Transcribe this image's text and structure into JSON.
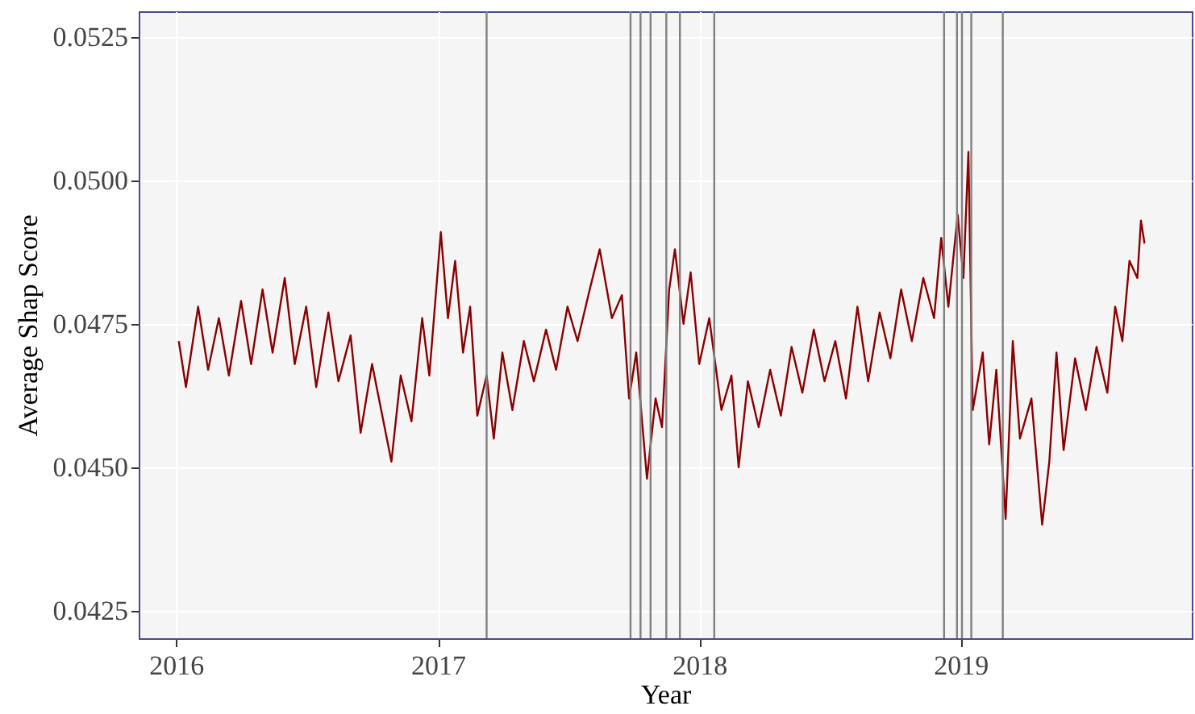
{
  "chart_data": {
    "type": "line",
    "xlabel": "Year",
    "ylabel": "Average Shap Score",
    "x": [
      "2016-01-05",
      "2016-01-15",
      "2016-02-01",
      "2016-02-15",
      "2016-03-01",
      "2016-03-15",
      "2016-04-01",
      "2016-04-15",
      "2016-05-01",
      "2016-05-15",
      "2016-06-01",
      "2016-06-15",
      "2016-07-01",
      "2016-07-15",
      "2016-08-01",
      "2016-08-15",
      "2016-09-01",
      "2016-09-15",
      "2016-10-01",
      "2016-10-28",
      "2016-11-10",
      "2016-11-25",
      "2016-12-10",
      "2016-12-20",
      "2017-01-05",
      "2017-01-15",
      "2017-01-25",
      "2017-02-05",
      "2017-02-15",
      "2017-02-25",
      "2017-03-10",
      "2017-03-20",
      "2017-04-01",
      "2017-04-15",
      "2017-05-01",
      "2017-05-15",
      "2017-06-01",
      "2017-06-15",
      "2017-07-01",
      "2017-07-15",
      "2017-08-01",
      "2017-08-15",
      "2017-09-01",
      "2017-09-15",
      "2017-09-25",
      "2017-10-05",
      "2017-10-20",
      "2017-11-01",
      "2017-11-10",
      "2017-11-20",
      "2017-11-28",
      "2017-12-10",
      "2017-12-20",
      "2018-01-01",
      "2018-01-15",
      "2018-02-01",
      "2018-02-15",
      "2018-02-25",
      "2018-03-10",
      "2018-03-25",
      "2018-04-10",
      "2018-04-25",
      "2018-05-10",
      "2018-05-25",
      "2018-06-10",
      "2018-06-25",
      "2018-07-10",
      "2018-07-25",
      "2018-08-10",
      "2018-08-25",
      "2018-09-10",
      "2018-09-25",
      "2018-10-10",
      "2018-10-25",
      "2018-11-10",
      "2018-11-25",
      "2018-12-05",
      "2018-12-15",
      "2018-12-28",
      "2019-01-05",
      "2019-01-12",
      "2019-01-18",
      "2019-02-01",
      "2019-02-10",
      "2019-02-20",
      "2019-03-05",
      "2019-03-15",
      "2019-03-25",
      "2019-04-10",
      "2019-04-25",
      "2019-05-05",
      "2019-05-15",
      "2019-05-25",
      "2019-06-10",
      "2019-06-25",
      "2019-07-10",
      "2019-07-25",
      "2019-08-05",
      "2019-08-15",
      "2019-08-25",
      "2019-09-05",
      "2019-09-10",
      "2019-09-15"
    ],
    "series": [
      {
        "color": "#8b0000",
        "values": [
          0.0472,
          0.0464,
          0.0478,
          0.0467,
          0.0476,
          0.0466,
          0.0479,
          0.0468,
          0.0481,
          0.047,
          0.0483,
          0.0468,
          0.0478,
          0.0464,
          0.0477,
          0.0465,
          0.0473,
          0.0456,
          0.0468,
          0.0451,
          0.0466,
          0.0458,
          0.0476,
          0.0466,
          0.0491,
          0.0476,
          0.0486,
          0.047,
          0.0478,
          0.0459,
          0.0466,
          0.0455,
          0.047,
          0.046,
          0.0472,
          0.0465,
          0.0474,
          0.0467,
          0.0478,
          0.0472,
          0.0481,
          0.0488,
          0.0476,
          0.048,
          0.0462,
          0.047,
          0.0448,
          0.0462,
          0.0457,
          0.0481,
          0.0488,
          0.0475,
          0.0484,
          0.0468,
          0.0476,
          0.046,
          0.0466,
          0.045,
          0.0465,
          0.0457,
          0.0467,
          0.0459,
          0.0471,
          0.0463,
          0.0474,
          0.0465,
          0.0472,
          0.0462,
          0.0478,
          0.0465,
          0.0477,
          0.0469,
          0.0481,
          0.0472,
          0.0483,
          0.0476,
          0.049,
          0.0478,
          0.0494,
          0.0483,
          0.0505,
          0.046,
          0.047,
          0.0454,
          0.0467,
          0.0441,
          0.0472,
          0.0455,
          0.0462,
          0.044,
          0.0451,
          0.047,
          0.0453,
          0.0469,
          0.046,
          0.0471,
          0.0463,
          0.0478,
          0.0472,
          0.0486,
          0.0483,
          0.0493,
          0.0489
        ]
      }
    ],
    "xlim": [
      "2015-11-10",
      "2019-11-20"
    ],
    "xticks": [
      {
        "value": "2016-01-01",
        "label": "2016"
      },
      {
        "value": "2017-01-01",
        "label": "2017"
      },
      {
        "value": "2018-01-01",
        "label": "2018"
      },
      {
        "value": "2019-01-01",
        "label": "2019"
      }
    ],
    "ylim": [
      0.04202,
      0.05295
    ],
    "yticks": [
      {
        "value": 0.0425,
        "label": "0.0425"
      },
      {
        "value": 0.05,
        "label": "0.0500"
      },
      {
        "value": 0.0475,
        "label": "0.0475"
      },
      {
        "value": 0.045,
        "label": "0.0450"
      },
      {
        "value": 0.0525,
        "label": "0.0525"
      }
    ],
    "ref_lines": [
      {
        "axis": "x",
        "value": "2017-03-10",
        "color": "#808080"
      },
      {
        "axis": "x",
        "value": "2017-09-27",
        "color": "#808080"
      },
      {
        "axis": "x",
        "value": "2017-10-11",
        "color": "#808080"
      },
      {
        "axis": "x",
        "value": "2017-10-25",
        "color": "#808080"
      },
      {
        "axis": "x",
        "value": "2017-11-16",
        "color": "#808080"
      },
      {
        "axis": "x",
        "value": "2017-12-05",
        "color": "#808080"
      },
      {
        "axis": "x",
        "value": "2018-01-22",
        "color": "#808080"
      },
      {
        "axis": "x",
        "value": "2018-12-09",
        "color": "#808080"
      },
      {
        "axis": "x",
        "value": "2018-12-27",
        "color": "#808080"
      },
      {
        "axis": "x",
        "value": "2019-01-03",
        "color": "#808080"
      },
      {
        "axis": "x",
        "value": "2019-01-16",
        "color": "#808080"
      },
      {
        "axis": "x",
        "value": "2019-03-01",
        "color": "#808080"
      }
    ],
    "grid": true,
    "marker": "none",
    "line_style": "solid"
  }
}
